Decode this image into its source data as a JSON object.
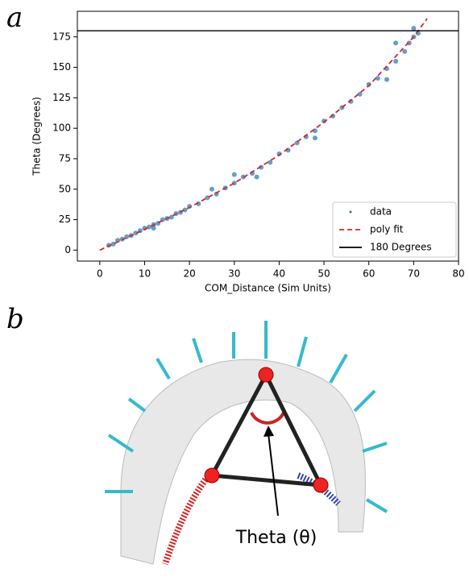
{
  "panel_labels": [
    "a",
    "b"
  ],
  "chart_data": {
    "type": "scatter",
    "x_label": "COM_Distance (Sim Units)",
    "y_label": "Theta (Degrees)",
    "xlim": [
      -5,
      80
    ],
    "ylim": [
      -9,
      196
    ],
    "xticks": [
      0,
      10,
      20,
      30,
      40,
      50,
      60,
      70,
      80
    ],
    "yticks": [
      0,
      25,
      50,
      75,
      100,
      125,
      150,
      175
    ],
    "legend": "lower right",
    "series": [
      {
        "name": "data",
        "type": "scatter",
        "color": "#1f77b4",
        "x": [
          2,
          3,
          4,
          5,
          6,
          7,
          8,
          9,
          10,
          11,
          12,
          13,
          14,
          15,
          16,
          17,
          18,
          19,
          20,
          22,
          24,
          26,
          28,
          30,
          32,
          34,
          36,
          38,
          40,
          42,
          44,
          46,
          48,
          50,
          52,
          54,
          56,
          58,
          60,
          62,
          64,
          66,
          68,
          69,
          70,
          71,
          30,
          35,
          48,
          66,
          70,
          64,
          25,
          12
        ],
        "values": [
          4,
          5,
          8,
          9,
          11,
          12,
          14,
          16,
          18,
          19,
          21,
          22,
          25,
          26,
          27,
          30,
          31,
          33,
          36,
          38,
          43,
          46,
          51,
          55,
          60,
          63,
          68,
          72,
          79,
          82,
          88,
          93,
          98,
          106,
          110,
          117,
          122,
          128,
          136,
          141,
          149,
          155,
          163,
          170,
          175,
          178,
          62,
          60,
          92,
          170,
          182,
          140,
          50,
          18
        ]
      },
      {
        "name": "poly fit",
        "type": "line",
        "color": "#d62728",
        "x": [
          0,
          10,
          20,
          30,
          40,
          50,
          60,
          70,
          73
        ],
        "values": [
          0,
          17,
          35,
          55,
          78,
          105,
          135,
          175,
          190
        ]
      },
      {
        "name": "180 Degrees",
        "type": "hline",
        "color": "#000000",
        "values": [
          180
        ]
      }
    ]
  },
  "diagram": {
    "label": "Theta (θ)"
  }
}
